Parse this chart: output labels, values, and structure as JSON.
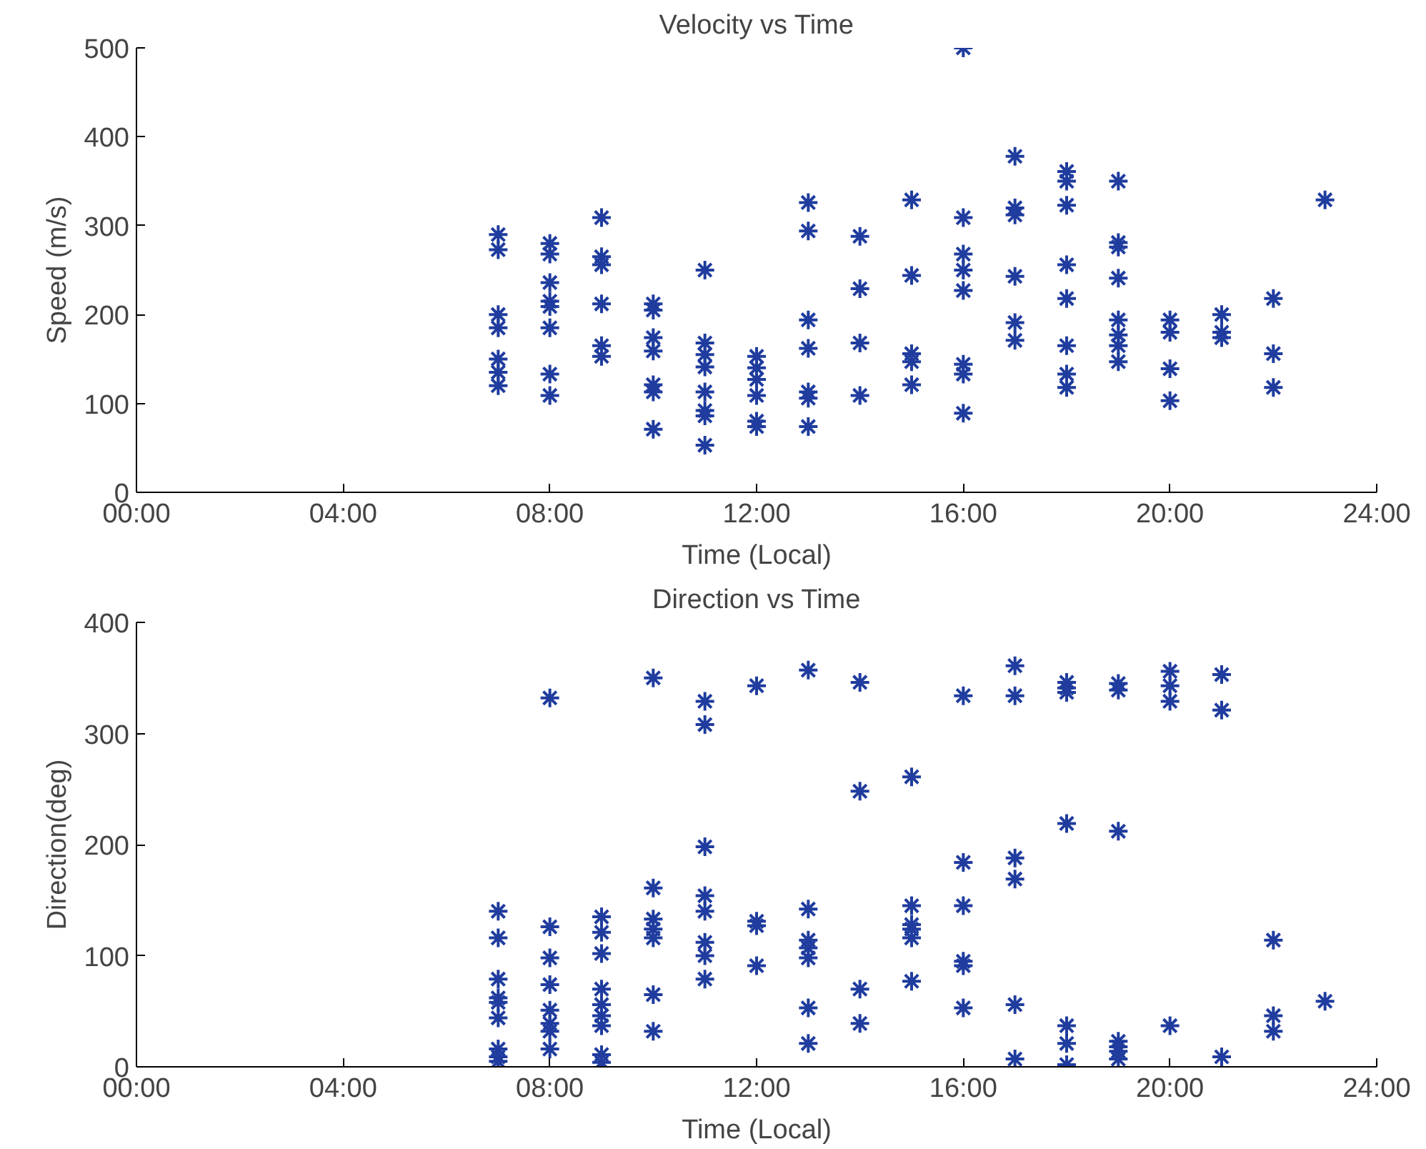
{
  "chart_data": [
    {
      "type": "scatter",
      "title": "Velocity vs Time",
      "xlabel": "Time (Local)",
      "ylabel": "Speed (m/s)",
      "marker": "cross",
      "grid": false,
      "xlim": [
        0,
        24
      ],
      "xticks": [
        {
          "value": 0,
          "label": "00:00"
        },
        {
          "value": 4,
          "label": "04:00"
        },
        {
          "value": 8,
          "label": "08:00"
        },
        {
          "value": 12,
          "label": "12:00"
        },
        {
          "value": 16,
          "label": "16:00"
        },
        {
          "value": 20,
          "label": "20:00"
        },
        {
          "value": 24,
          "label": "24:00"
        }
      ],
      "ylim": [
        0,
        500
      ],
      "yticks": [
        0,
        100,
        200,
        300,
        400,
        500
      ],
      "series": [
        {
          "color": "#1f3c9e",
          "x": [
            7,
            7,
            7,
            7,
            7,
            7,
            7,
            8,
            8,
            8,
            8,
            8,
            8,
            8,
            8,
            9,
            9,
            9,
            9,
            9,
            9,
            10,
            10,
            10,
            10,
            10,
            10,
            10,
            11,
            11,
            11,
            11,
            11,
            11,
            11,
            11,
            12,
            12,
            12,
            12,
            12,
            12,
            13,
            13,
            13,
            13,
            13,
            13,
            13,
            14,
            14,
            14,
            14,
            15,
            15,
            15,
            15,
            15,
            16,
            16,
            16,
            16,
            16,
            16,
            16,
            16,
            17,
            17,
            17,
            17,
            17,
            17,
            18,
            18,
            18,
            18,
            18,
            18,
            18,
            18,
            19,
            19,
            19,
            19,
            19,
            19,
            19,
            19,
            20,
            20,
            20,
            20,
            21,
            21,
            21,
            22,
            22,
            22,
            23
          ],
          "values": [
            290,
            273,
            200,
            185,
            150,
            135,
            120,
            280,
            268,
            236,
            215,
            209,
            185,
            133,
            109,
            309,
            265,
            256,
            212,
            165,
            153,
            212,
            205,
            174,
            159,
            121,
            113,
            71,
            250,
            168,
            155,
            141,
            113,
            92,
            86,
            53,
            153,
            140,
            127,
            109,
            80,
            74,
            326,
            294,
            194,
            162,
            113,
            106,
            74,
            288,
            229,
            168,
            109,
            329,
            244,
            156,
            147,
            121,
            500,
            309,
            268,
            250,
            227,
            144,
            133,
            89,
            378,
            320,
            312,
            243,
            191,
            171,
            361,
            350,
            323,
            256,
            218,
            165,
            133,
            118,
            350,
            281,
            276,
            241,
            194,
            177,
            165,
            147,
            194,
            180,
            139,
            103,
            200,
            180,
            174,
            218,
            156,
            118,
            329
          ]
        }
      ]
    },
    {
      "type": "scatter",
      "title": "Direction vs Time",
      "xlabel": "Time (Local)",
      "ylabel": "Direction(deg)",
      "marker": "cross",
      "grid": false,
      "xlim": [
        0,
        24
      ],
      "xticks": [
        {
          "value": 0,
          "label": "00:00"
        },
        {
          "value": 4,
          "label": "04:00"
        },
        {
          "value": 8,
          "label": "08:00"
        },
        {
          "value": 12,
          "label": "12:00"
        },
        {
          "value": 16,
          "label": "16:00"
        },
        {
          "value": 20,
          "label": "20:00"
        },
        {
          "value": 24,
          "label": "24:00"
        }
      ],
      "ylim": [
        0,
        400
      ],
      "yticks": [
        0,
        100,
        200,
        300,
        400
      ],
      "series": [
        {
          "color": "#1f3c9e",
          "x": [
            7,
            7,
            7,
            7,
            7,
            7,
            7,
            7,
            7,
            8,
            8,
            8,
            8,
            8,
            8,
            8,
            8,
            9,
            9,
            9,
            9,
            9,
            9,
            9,
            9,
            9,
            10,
            10,
            10,
            10,
            10,
            10,
            10,
            11,
            11,
            11,
            11,
            11,
            11,
            11,
            11,
            12,
            12,
            12,
            12,
            13,
            13,
            13,
            13,
            13,
            13,
            13,
            14,
            14,
            14,
            14,
            15,
            15,
            15,
            15,
            15,
            15,
            16,
            16,
            16,
            16,
            16,
            16,
            17,
            17,
            17,
            17,
            17,
            17,
            18,
            18,
            18,
            18,
            18,
            18,
            18,
            19,
            19,
            19,
            19,
            19,
            19,
            19,
            20,
            20,
            20,
            20,
            21,
            21,
            21,
            22,
            22,
            22,
            23
          ],
          "values": [
            140,
            116,
            79,
            62,
            58,
            44,
            16,
            9,
            5,
            332,
            126,
            98,
            74,
            51,
            39,
            32,
            16,
            135,
            121,
            102,
            70,
            56,
            46,
            37,
            11,
            4,
            350,
            161,
            133,
            124,
            116,
            65,
            32,
            329,
            308,
            198,
            154,
            140,
            112,
            100,
            79,
            343,
            131,
            127,
            91,
            357,
            142,
            114,
            107,
            98,
            53,
            21,
            346,
            248,
            70,
            39,
            261,
            145,
            128,
            124,
            116,
            77,
            334,
            184,
            145,
            95,
            91,
            53,
            361,
            334,
            188,
            169,
            56,
            7,
            346,
            341,
            337,
            219,
            37,
            21,
            2,
            345,
            339,
            212,
            23,
            18,
            14,
            7,
            356,
            343,
            329,
            37,
            353,
            321,
            9,
            114,
            46,
            32,
            59
          ]
        }
      ]
    }
  ]
}
